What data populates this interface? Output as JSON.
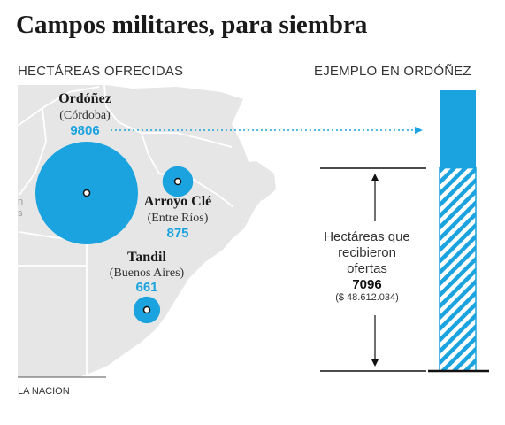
{
  "title": "Campos militares, para siembra",
  "labels": {
    "left": "HECTÁREAS OFRECIDAS",
    "right": "EJEMPLO EN ORDÓÑEZ",
    "source": "LA NACION"
  },
  "colors": {
    "accent": "#1aa3de",
    "map_land": "#e6e6e6",
    "map_border": "#ffffff"
  },
  "chart_data": {
    "type": "bubble-map",
    "locations": [
      {
        "name": "Ordóñez",
        "province": "(Córdoba)",
        "hectares": 9806
      },
      {
        "name": "Arroyo Clé",
        "province": "(Entre Ríos)",
        "hectares": 875
      },
      {
        "name": "Tandil",
        "province": "(Buenos Aires)",
        "hectares": 661
      }
    ],
    "example": {
      "total_hectares": 9806,
      "received_offers_label": [
        "Hectáreas que",
        "recibieron",
        "ofertas"
      ],
      "received_offers_hectares": 7096,
      "received_offers_amount": "($ 48.612.034)"
    }
  }
}
